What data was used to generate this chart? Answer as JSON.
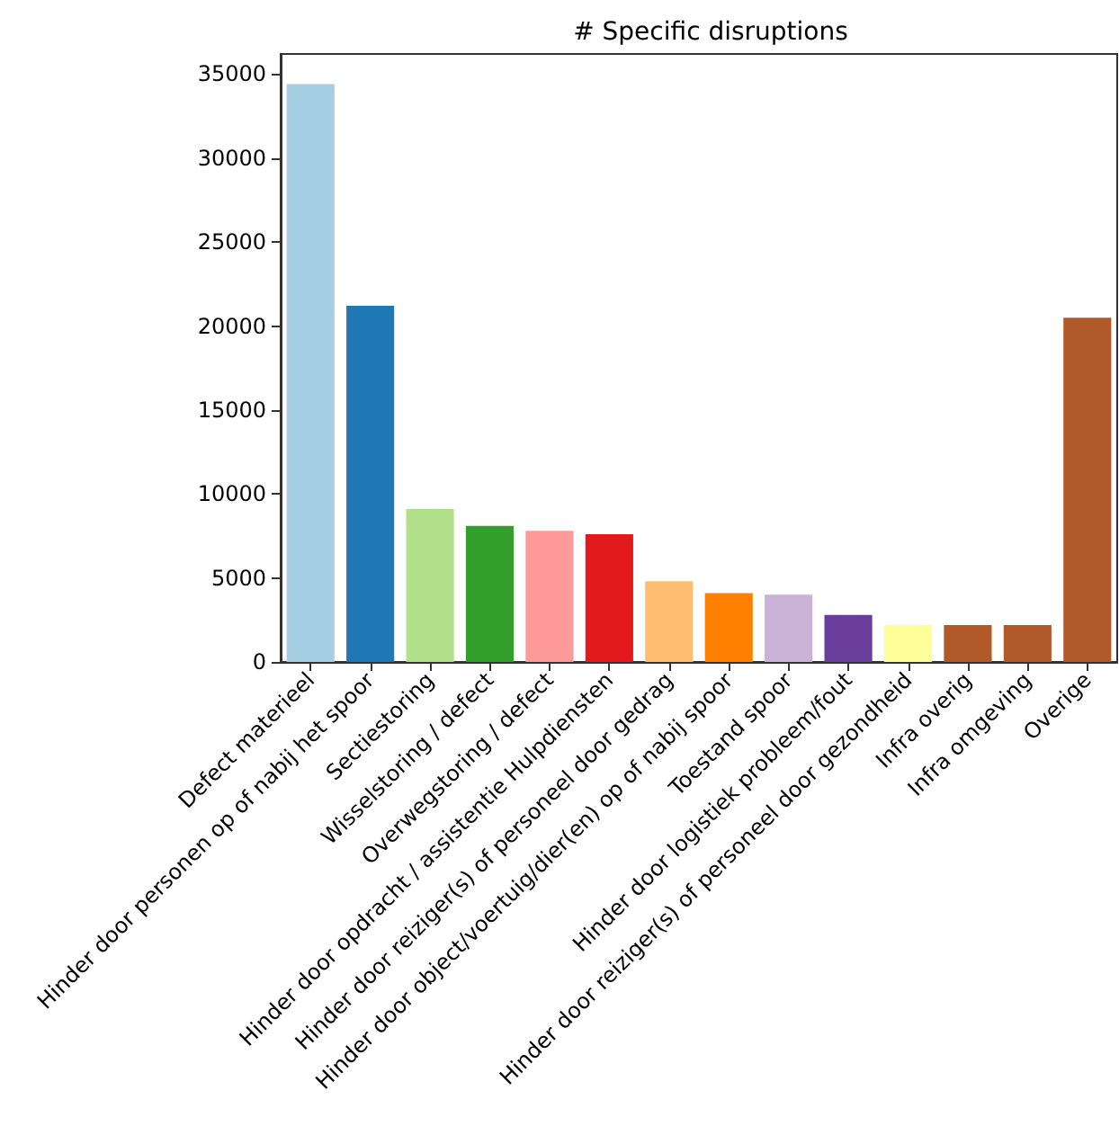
{
  "chart_data": {
    "type": "bar",
    "title": "# Specific disruptions",
    "categories": [
      "Defect materieel",
      "Hinder door personen op of nabij het spoor",
      "Sectiestoring",
      "Wisselstoring / defect",
      "Overwegstoring / defect",
      "Hinder door opdracht / assistentie Hulpdiensten",
      "Hinder door reiziger(s) of personeel door gedrag",
      "Hinder door object/voertuig/dier(en) op of nabij spoor",
      "Toestand spoor",
      "Hinder door logistiek probleem/fout",
      "Hinder door reiziger(s) of personeel door gezondheid",
      "Infra overig",
      "Infra omgeving",
      "Overige"
    ],
    "values": [
      34400,
      21200,
      9100,
      8100,
      7800,
      7600,
      4800,
      4100,
      4000,
      2800,
      2200,
      2200,
      2200,
      20500
    ],
    "colors": [
      "#a6cee3",
      "#1f78b4",
      "#b2df8a",
      "#33a02c",
      "#fb9a99",
      "#e31a1c",
      "#fdbf6f",
      "#ff7f00",
      "#cab2d6",
      "#6a3d9a",
      "#ffff99",
      "#b15928",
      "#b15928",
      "#b15928"
    ],
    "ylim": [
      0,
      36200
    ],
    "yticks": [
      0,
      5000,
      10000,
      15000,
      20000,
      25000,
      30000,
      35000
    ],
    "grid": false
  }
}
